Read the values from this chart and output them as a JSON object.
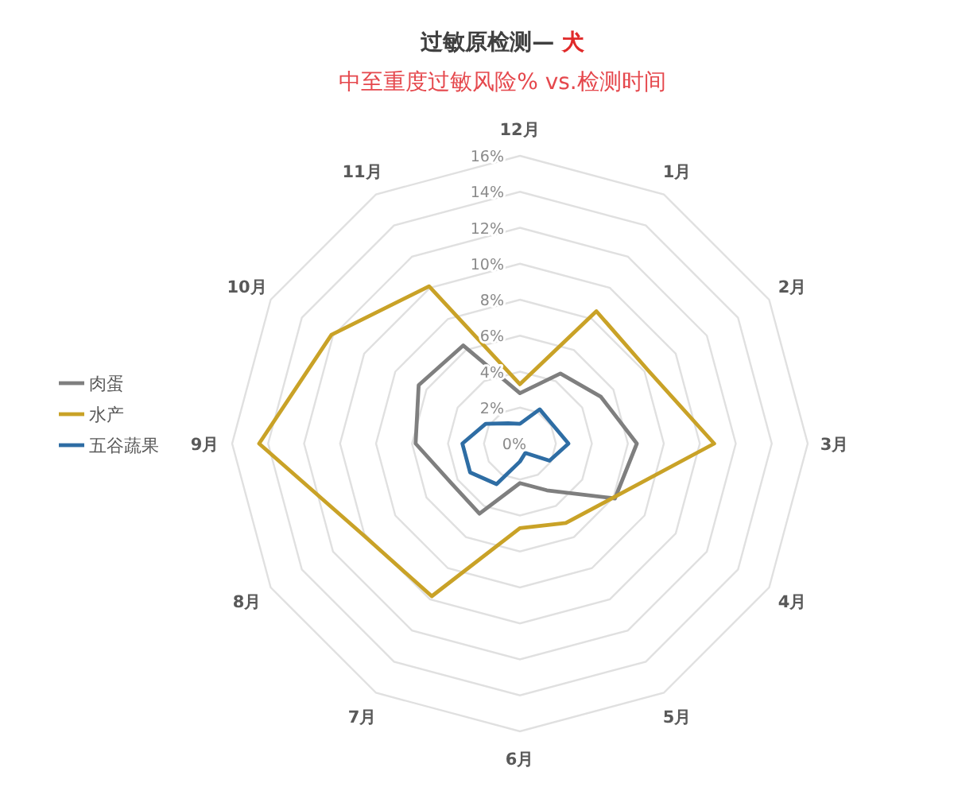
{
  "chart_data": {
    "type": "radar",
    "title": "过敏原检测— 犬",
    "subtitle": "中至重度过敏风险% vs.检测时间",
    "categories": [
      "12月",
      "1月",
      "2月",
      "3月",
      "4月",
      "5月",
      "6月",
      "7月",
      "8月",
      "9月",
      "10月",
      "11月"
    ],
    "series": [
      {
        "name": "肉蛋",
        "color": "#7f7f7f",
        "values": [
          2.8,
          4.5,
          5.2,
          6.5,
          6.1,
          3.0,
          2.2,
          4.5,
          4.4,
          5.8,
          6.5,
          6.3
        ]
      },
      {
        "name": "水产",
        "color": "#c9a227",
        "values": [
          3.3,
          8.5,
          8.2,
          10.8,
          6.0,
          5.1,
          4.7,
          9.8,
          10.1,
          14.5,
          12.1,
          10.1
        ]
      },
      {
        "name": "五谷蔬果",
        "color": "#2e6da4",
        "values": [
          1.1,
          2.2,
          2.1,
          2.7,
          1.9,
          0.6,
          1.0,
          2.6,
          3.2,
          3.2,
          2.2,
          1.3
        ]
      }
    ],
    "ylim": [
      0,
      16
    ],
    "yticks": [
      {
        "value": 0,
        "label": "0%"
      },
      {
        "value": 2,
        "label": "2%"
      },
      {
        "value": 4,
        "label": "4%"
      },
      {
        "value": 6,
        "label": "6%"
      },
      {
        "value": 8,
        "label": "8%"
      },
      {
        "value": 10,
        "label": "10%"
      },
      {
        "value": 12,
        "label": "12%"
      },
      {
        "value": 14,
        "label": "14%"
      },
      {
        "value": 16,
        "label": "16%"
      }
    ],
    "grid": true,
    "legend": "left",
    "line_style": "solid"
  }
}
